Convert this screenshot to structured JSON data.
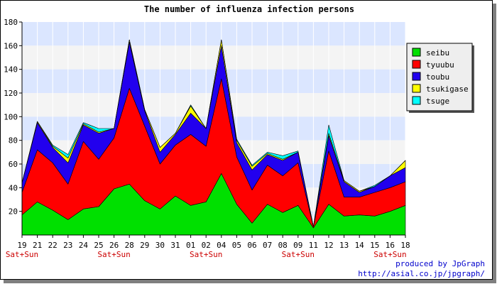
{
  "chart_data": {
    "type": "area",
    "stacked": true,
    "title": "The number of influenza infection persons",
    "xlabel": "",
    "ylabel": "",
    "ylim": [
      0,
      180
    ],
    "yticks": [
      20,
      40,
      60,
      80,
      100,
      120,
      140,
      160,
      180
    ],
    "grid": true,
    "legend_position": "right",
    "categories": [
      "19",
      "21",
      "22",
      "23",
      "24",
      "25",
      "26",
      "28",
      "29",
      "30",
      "31",
      "01",
      "02",
      "04",
      "05",
      "06",
      "07",
      "08",
      "09",
      "11",
      "12",
      "13",
      "14",
      "15",
      "16",
      "18"
    ],
    "weekend_labels": [
      "Sat+Sun",
      "",
      "",
      "",
      "",
      "",
      "Sat+Sun",
      "",
      "",
      "",
      "",
      "",
      "Sat+Sun",
      "",
      "",
      "",
      "",
      "",
      "Sat+Sun",
      "",
      "",
      "",
      "",
      "",
      "Sat+Sun",
      ""
    ],
    "weekend_marker_color": "#cc0000",
    "series": [
      {
        "name": "seibu",
        "color": "#00e000",
        "values": [
          17,
          28,
          21,
          13,
          22,
          24,
          39,
          43,
          29,
          22,
          33,
          25,
          28,
          52,
          26,
          10,
          26,
          19,
          25,
          6,
          26,
          16,
          17,
          16,
          20,
          25
        ]
      },
      {
        "name": "tyuubu",
        "color": "#ff0000",
        "values": [
          19,
          44,
          40,
          30,
          57,
          40,
          43,
          81,
          63,
          38,
          43,
          60,
          47,
          80,
          40,
          28,
          33,
          31,
          36,
          1,
          45,
          16,
          15,
          20,
          20,
          20
        ]
      },
      {
        "name": "toubu",
        "color": "#2200ee",
        "values": [
          8,
          23,
          13,
          18,
          14,
          22,
          8,
          39,
          13,
          10,
          9,
          18,
          15,
          28,
          12,
          17,
          9,
          13,
          9,
          0,
          13,
          13,
          4,
          5,
          10,
          12
        ]
      },
      {
        "name": "tsukigase",
        "color": "#ffff00",
        "values": [
          0,
          1,
          1,
          4,
          1,
          1,
          0,
          2,
          1,
          4,
          1,
          6,
          0,
          5,
          2,
          3,
          1,
          1,
          0,
          0,
          2,
          1,
          1,
          0,
          0,
          6
        ]
      },
      {
        "name": "tsuge",
        "color": "#00ffff",
        "values": [
          0,
          0,
          1,
          3,
          1,
          3,
          0,
          0,
          0,
          0,
          0,
          1,
          0,
          0,
          1,
          1,
          1,
          3,
          1,
          0,
          7,
          0,
          0,
          1,
          0,
          0
        ]
      }
    ],
    "band_colors": [
      "#dbe6ff",
      "#f4f4f4"
    ],
    "legend_background": "#eeeeee",
    "credit_line1": "produced by JpGraph",
    "credit_line2": "http://asial.co.jp/jpgraph/"
  }
}
